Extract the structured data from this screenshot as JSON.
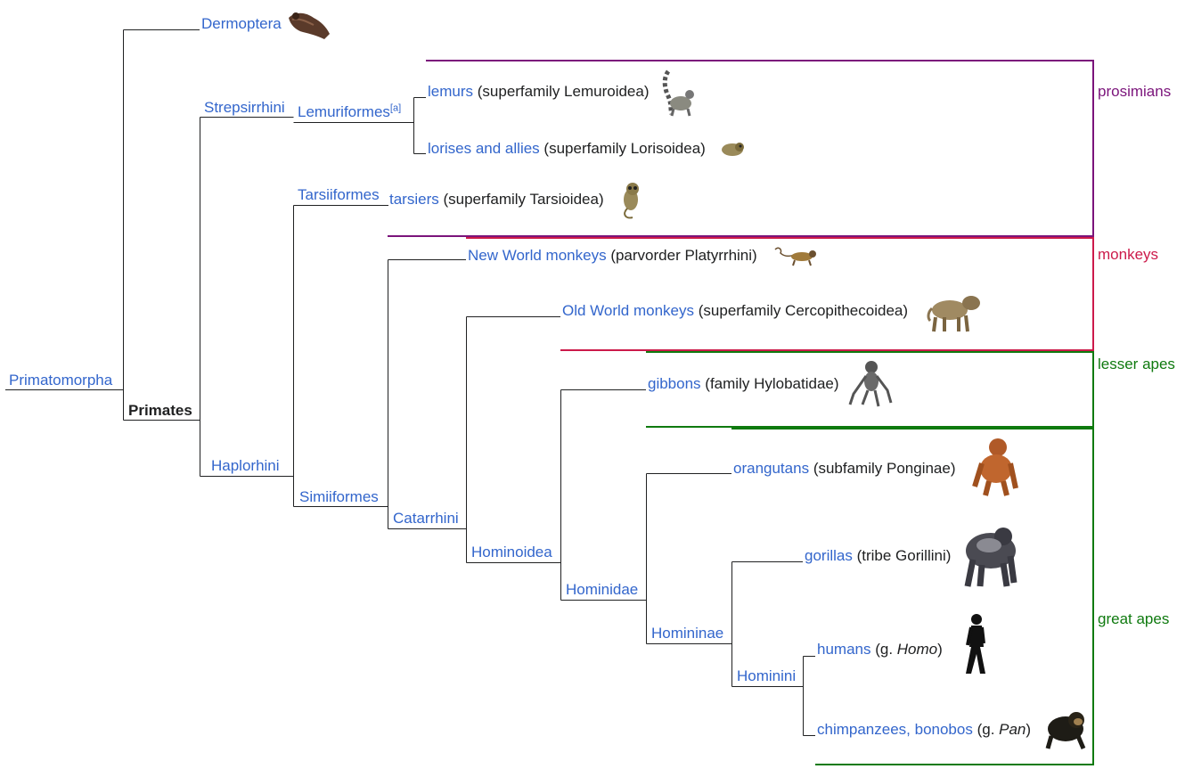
{
  "root": {
    "label": "Primatomorpha"
  },
  "clades": {
    "dermoptera": "Dermoptera",
    "primates": "Primates",
    "strepsirrhini": "Strepsirrhini",
    "lemuriformes": "Lemuriformes",
    "lemuriformes_note": "[a]",
    "haplorhini": "Haplorhini",
    "tarsiiformes": "Tarsiiformes",
    "simiiformes": "Simiiformes",
    "catarrhini": "Catarrhini",
    "hominoidea": "Hominoidea",
    "hominidae": "Hominidae",
    "homininae": "Homininae",
    "hominini": "Hominini"
  },
  "leaves": {
    "lemurs": {
      "name": "lemurs",
      "rank": "(superfamily Lemuroidea)"
    },
    "lorises": {
      "name": "lorises and allies",
      "rank": "(superfamily Lorisoidea)"
    },
    "tarsiers": {
      "name": "tarsiers",
      "rank": "(superfamily Tarsioidea)"
    },
    "nwm": {
      "name": "New World monkeys",
      "rank": "(parvorder Platyrrhini)"
    },
    "owm": {
      "name": "Old World monkeys",
      "rank": "(superfamily Cercopithecoidea)"
    },
    "gibbons": {
      "name": "gibbons",
      "rank": "(family Hylobatidae)"
    },
    "orangutans": {
      "name": "orangutans",
      "rank": "(subfamily Ponginae)"
    },
    "gorillas": {
      "name": "gorillas",
      "rank": "(tribe Gorillini)"
    },
    "humans": {
      "name": "humans",
      "rank_pre": "(g. ",
      "genus": "Homo",
      "rank_post": ")"
    },
    "chimps": {
      "name": "chimpanzees, bonobos",
      "rank_pre": "(g. ",
      "genus": "Pan",
      "rank_post": ")"
    }
  },
  "groups": {
    "prosimians": "prosimians",
    "monkeys": "monkeys",
    "lesser_apes": "lesser apes",
    "great_apes": "great apes"
  },
  "colors": {
    "link": "#3366cc",
    "text": "#202122",
    "tree_line": "#202122",
    "prosimians": "#7b147b",
    "monkeys": "#cc1a4a",
    "lesser_apes": "#0f7a0f",
    "great_apes": "#0f7a0f"
  },
  "icons": [
    "colugo-icon",
    "lemur-icon",
    "loris-icon",
    "tarsier-icon",
    "new-world-monkey-icon",
    "baboon-icon",
    "gibbon-icon",
    "orangutan-icon",
    "gorilla-icon",
    "human-silhouette-icon",
    "chimpanzee-icon"
  ]
}
